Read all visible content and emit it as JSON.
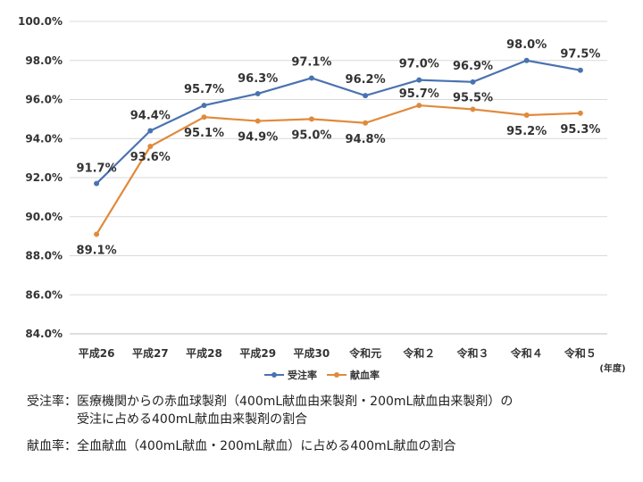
{
  "chart_data": {
    "type": "line",
    "categories": [
      "平成26",
      "平成27",
      "平成28",
      "平成29",
      "平成30",
      "令和元",
      "令和２",
      "令和３",
      "令和４",
      "令和５"
    ],
    "series": [
      {
        "name": "受注率",
        "color": "#4a72b0",
        "values": [
          91.7,
          94.4,
          95.7,
          96.3,
          97.1,
          96.2,
          97.0,
          96.9,
          98.0,
          97.5
        ],
        "labels": [
          "91.7%",
          "94.4%",
          "95.7%",
          "96.3%",
          "97.1%",
          "96.2%",
          "97.0%",
          "96.9%",
          "98.0%",
          "97.5%"
        ]
      },
      {
        "name": "献血率",
        "color": "#e08a3c",
        "values": [
          89.1,
          93.6,
          95.1,
          94.9,
          95.0,
          94.8,
          95.7,
          95.5,
          95.2,
          95.3
        ],
        "labels": [
          "89.1%",
          "93.6%",
          "95.1%",
          "94.9%",
          "95.0%",
          "94.8%",
          "95.7%",
          "95.5%",
          "95.2%",
          "95.3%"
        ]
      }
    ],
    "ylim": [
      84.0,
      100.0
    ],
    "y_ticks": [
      84.0,
      86.0,
      88.0,
      90.0,
      92.0,
      94.0,
      96.0,
      98.0,
      100.0
    ],
    "y_tick_labels": [
      "84.0%",
      "86.0%",
      "88.0%",
      "90.0%",
      "92.0%",
      "94.0%",
      "96.0%",
      "98.0%",
      "100.0%"
    ],
    "x_unit": "(年度)",
    "legend_position": "bottom",
    "grid": true
  },
  "notes": [
    {
      "term": "受注率：",
      "lines": [
        "医療機関からの赤血球製剤（400mL献血由来製剤・200mL献血由来製剤）の",
        "受注に占める400mL献血由来製剤の割合"
      ]
    },
    {
      "term": "献血率：",
      "lines": [
        "全血献血（400mL献血・200mL献血）に占める400mL献血の割合"
      ]
    }
  ]
}
